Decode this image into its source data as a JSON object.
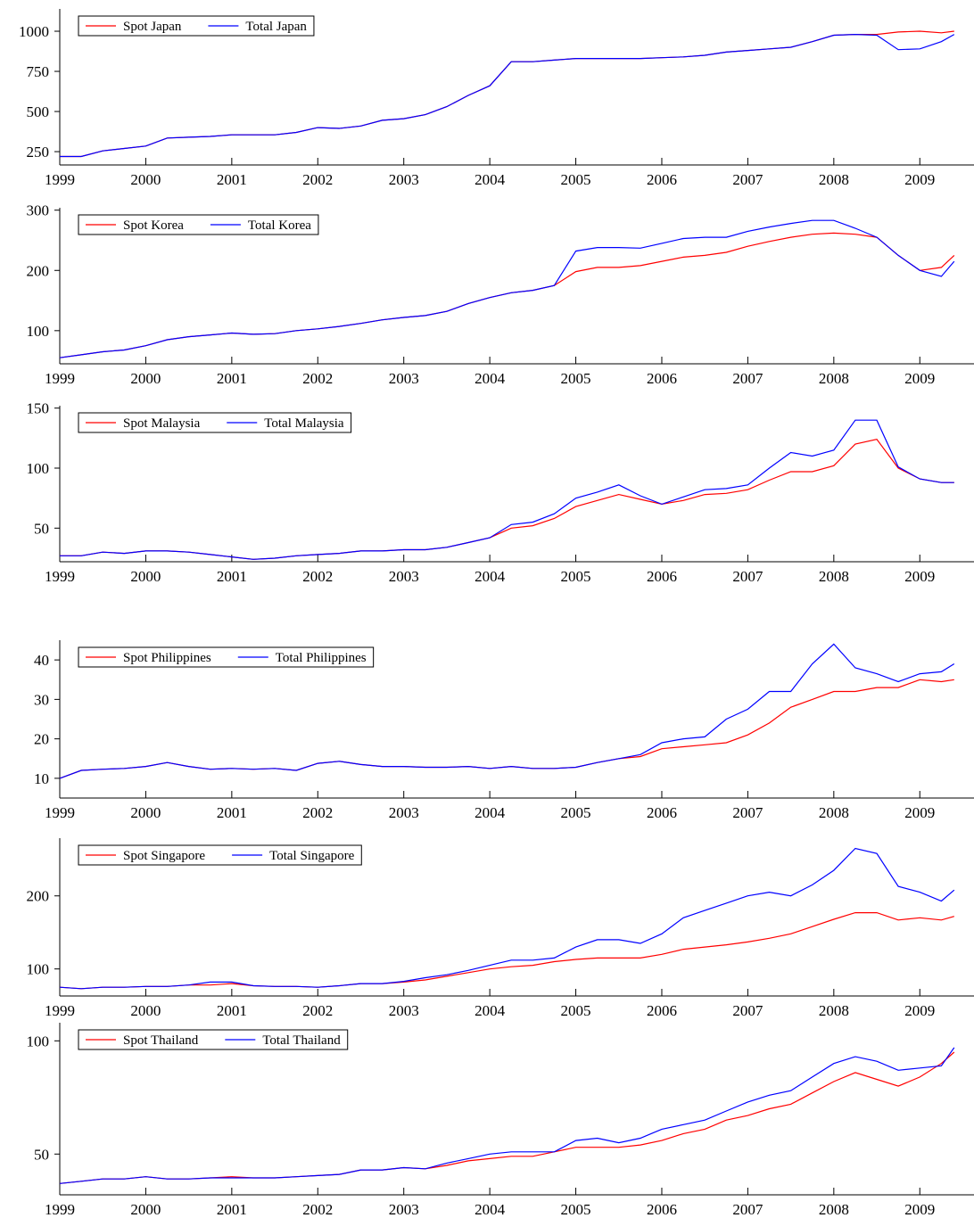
{
  "chart_data": [
    {
      "type": "line",
      "legend": "upper left",
      "xlim": [
        1999,
        2009.63
      ],
      "xticks": [
        1999,
        2000,
        2001,
        2002,
        2003,
        2004,
        2005,
        2006,
        2007,
        2008,
        2009
      ],
      "ylim": [
        167,
        1139
      ],
      "yticks": [
        250,
        500,
        750,
        1000
      ],
      "x": [
        1999,
        1999.25,
        1999.5,
        1999.75,
        2000,
        2000.25,
        2000.5,
        2000.75,
        2001,
        2001.25,
        2001.5,
        2001.75,
        2002,
        2002.25,
        2002.5,
        2002.75,
        2003,
        2003.25,
        2003.5,
        2003.75,
        2004,
        2004.25,
        2004.5,
        2004.75,
        2005,
        2005.25,
        2005.5,
        2005.75,
        2006,
        2006.25,
        2006.5,
        2006.75,
        2007,
        2007.25,
        2007.5,
        2007.75,
        2008,
        2008.25,
        2008.5,
        2008.75,
        2009,
        2009.25,
        2009.4
      ],
      "series": [
        {
          "name": "Spot Japan",
          "color": "#ff0000",
          "values": [
            220,
            220,
            255,
            270,
            285,
            335,
            340,
            345,
            355,
            355,
            355,
            370,
            400,
            395,
            410,
            445,
            455,
            480,
            530,
            600,
            660,
            810,
            810,
            820,
            830,
            830,
            830,
            830,
            835,
            840,
            850,
            870,
            880,
            890,
            900,
            935,
            975,
            980,
            980,
            995,
            1000,
            990,
            1000
          ]
        },
        {
          "name": "Total Japan",
          "color": "#0000ff",
          "values": [
            220,
            220,
            255,
            270,
            285,
            335,
            340,
            345,
            355,
            355,
            355,
            370,
            400,
            395,
            410,
            445,
            455,
            480,
            530,
            600,
            660,
            810,
            810,
            820,
            830,
            830,
            830,
            830,
            835,
            840,
            850,
            870,
            880,
            890,
            900,
            935,
            975,
            980,
            975,
            885,
            890,
            935,
            980
          ]
        }
      ]
    },
    {
      "type": "line",
      "legend": "upper left",
      "xlim": [
        1999,
        2009.63
      ],
      "xticks": [
        1999,
        2000,
        2001,
        2002,
        2003,
        2004,
        2005,
        2006,
        2007,
        2008,
        2009
      ],
      "ylim": [
        45,
        304
      ],
      "yticks": [
        100,
        200,
        300
      ],
      "x": [
        1999,
        1999.25,
        1999.5,
        1999.75,
        2000,
        2000.25,
        2000.5,
        2000.75,
        2001,
        2001.25,
        2001.5,
        2001.75,
        2002,
        2002.25,
        2002.5,
        2002.75,
        2003,
        2003.25,
        2003.5,
        2003.75,
        2004,
        2004.25,
        2004.5,
        2004.75,
        2005,
        2005.25,
        2005.5,
        2005.75,
        2006,
        2006.25,
        2006.5,
        2006.75,
        2007,
        2007.25,
        2007.5,
        2007.75,
        2008,
        2008.25,
        2008.5,
        2008.75,
        2009,
        2009.25,
        2009.4
      ],
      "series": [
        {
          "name": "Spot Korea",
          "color": "#ff0000",
          "values": [
            55,
            60,
            65,
            68,
            75,
            85,
            90,
            93,
            96,
            94,
            95,
            100,
            103,
            107,
            112,
            118,
            122,
            125,
            132,
            145,
            155,
            163,
            167,
            175,
            198,
            205,
            205,
            208,
            215,
            222,
            225,
            230,
            240,
            248,
            255,
            260,
            262,
            260,
            255,
            225,
            200,
            205,
            225
          ]
        },
        {
          "name": "Total Korea",
          "color": "#0000ff",
          "values": [
            55,
            60,
            65,
            68,
            75,
            85,
            90,
            93,
            96,
            94,
            95,
            100,
            103,
            107,
            112,
            118,
            122,
            125,
            132,
            145,
            155,
            163,
            167,
            175,
            232,
            238,
            238,
            237,
            245,
            253,
            255,
            255,
            265,
            272,
            278,
            283,
            283,
            270,
            255,
            225,
            200,
            190,
            215
          ]
        }
      ]
    },
    {
      "type": "line",
      "legend": "upper left",
      "xlim": [
        1999,
        2009.63
      ],
      "xticks": [
        1999,
        2000,
        2001,
        2002,
        2003,
        2004,
        2005,
        2006,
        2007,
        2008,
        2009
      ],
      "ylim": [
        22,
        152
      ],
      "yticks": [
        50,
        100,
        150
      ],
      "x": [
        1999,
        1999.25,
        1999.5,
        1999.75,
        2000,
        2000.25,
        2000.5,
        2000.75,
        2001,
        2001.25,
        2001.5,
        2001.75,
        2002,
        2002.25,
        2002.5,
        2002.75,
        2003,
        2003.25,
        2003.5,
        2003.75,
        2004,
        2004.25,
        2004.5,
        2004.75,
        2005,
        2005.25,
        2005.5,
        2005.75,
        2006,
        2006.25,
        2006.5,
        2006.75,
        2007,
        2007.25,
        2007.5,
        2007.75,
        2008,
        2008.25,
        2008.5,
        2008.75,
        2009,
        2009.25,
        2009.4
      ],
      "series": [
        {
          "name": "Spot Malaysia",
          "color": "#ff0000",
          "values": [
            27,
            27,
            30,
            29,
            31,
            31,
            30,
            28,
            26,
            24,
            25,
            27,
            28,
            29,
            31,
            31,
            32,
            32,
            34,
            38,
            42,
            50,
            52,
            58,
            68,
            73,
            78,
            74,
            70,
            73,
            78,
            79,
            82,
            90,
            97,
            97,
            102,
            120,
            124,
            100,
            91,
            88,
            88
          ]
        },
        {
          "name": "Total Malaysia",
          "color": "#0000ff",
          "values": [
            27,
            27,
            30,
            29,
            31,
            31,
            30,
            28,
            26,
            24,
            25,
            27,
            28,
            29,
            31,
            31,
            32,
            32,
            34,
            38,
            42,
            53,
            55,
            62,
            75,
            80,
            86,
            77,
            70,
            76,
            82,
            83,
            86,
            100,
            113,
            110,
            115,
            140,
            140,
            101,
            91,
            88,
            88
          ]
        }
      ]
    },
    {
      "type": "line",
      "legend": "upper left",
      "xlim": [
        1999,
        2009.63
      ],
      "xticks": [
        1999,
        2000,
        2001,
        2002,
        2003,
        2004,
        2005,
        2006,
        2007,
        2008,
        2009
      ],
      "ylim": [
        5,
        45
      ],
      "yticks": [
        10,
        20,
        30,
        40
      ],
      "x": [
        1999,
        1999.25,
        1999.5,
        1999.75,
        2000,
        2000.25,
        2000.5,
        2000.75,
        2001,
        2001.25,
        2001.5,
        2001.75,
        2002,
        2002.25,
        2002.5,
        2002.75,
        2003,
        2003.25,
        2003.5,
        2003.75,
        2004,
        2004.25,
        2004.5,
        2004.75,
        2005,
        2005.25,
        2005.5,
        2005.75,
        2006,
        2006.25,
        2006.5,
        2006.75,
        2007,
        2007.25,
        2007.5,
        2007.75,
        2008,
        2008.25,
        2008.5,
        2008.75,
        2009,
        2009.25,
        2009.4
      ],
      "series": [
        {
          "name": "Spot Philippines",
          "color": "#ff0000",
          "values": [
            10,
            12,
            12.3,
            12.5,
            13,
            14,
            13,
            12.3,
            12.5,
            12.3,
            12.5,
            12,
            13.8,
            14.3,
            13.5,
            13,
            13,
            12.8,
            12.8,
            13,
            12.5,
            13,
            12.5,
            12.5,
            12.8,
            14,
            15,
            15.5,
            17.5,
            18,
            18.5,
            19,
            21,
            24,
            28,
            30,
            32,
            32,
            33,
            33,
            35,
            34.5,
            35
          ]
        },
        {
          "name": "Total Philippines",
          "color": "#0000ff",
          "values": [
            10,
            12,
            12.3,
            12.5,
            13,
            14,
            13,
            12.3,
            12.5,
            12.3,
            12.5,
            12,
            13.8,
            14.3,
            13.5,
            13,
            13,
            12.8,
            12.8,
            13,
            12.5,
            13,
            12.5,
            12.5,
            12.8,
            14,
            15,
            16,
            19,
            20,
            20.5,
            25,
            27.5,
            32,
            32,
            39,
            44,
            38,
            36.5,
            34.5,
            36.5,
            37,
            39
          ]
        }
      ]
    },
    {
      "type": "line",
      "legend": "upper left",
      "xlim": [
        1999,
        2009.63
      ],
      "xticks": [
        1999,
        2000,
        2001,
        2002,
        2003,
        2004,
        2005,
        2006,
        2007,
        2008,
        2009
      ],
      "ylim": [
        63,
        279
      ],
      "yticks": [
        100,
        200
      ],
      "x": [
        1999,
        1999.25,
        1999.5,
        1999.75,
        2000,
        2000.25,
        2000.5,
        2000.75,
        2001,
        2001.25,
        2001.5,
        2001.75,
        2002,
        2002.25,
        2002.5,
        2002.75,
        2003,
        2003.25,
        2003.5,
        2003.75,
        2004,
        2004.25,
        2004.5,
        2004.75,
        2005,
        2005.25,
        2005.5,
        2005.75,
        2006,
        2006.25,
        2006.5,
        2006.75,
        2007,
        2007.25,
        2007.5,
        2007.75,
        2008,
        2008.25,
        2008.5,
        2008.75,
        2009,
        2009.25,
        2009.4
      ],
      "series": [
        {
          "name": "Spot Singapore",
          "color": "#ff0000",
          "values": [
            75,
            73,
            75,
            75,
            76,
            76,
            78,
            78,
            80,
            77,
            76,
            76,
            75,
            77,
            80,
            80,
            82,
            85,
            90,
            95,
            100,
            103,
            105,
            110,
            113,
            115,
            115,
            115,
            120,
            127,
            130,
            133,
            137,
            142,
            148,
            158,
            168,
            177,
            177,
            167,
            170,
            167,
            172
          ]
        },
        {
          "name": "Total Singapore",
          "color": "#0000ff",
          "values": [
            75,
            73,
            75,
            75,
            76,
            76,
            78,
            82,
            82,
            77,
            76,
            76,
            75,
            77,
            80,
            80,
            83,
            88,
            92,
            98,
            105,
            112,
            112,
            115,
            130,
            140,
            140,
            135,
            148,
            170,
            180,
            190,
            200,
            205,
            200,
            215,
            235,
            265,
            258,
            213,
            205,
            193,
            208
          ]
        }
      ]
    },
    {
      "type": "line",
      "legend": "upper left",
      "xlim": [
        1999,
        2009.63
      ],
      "xticks": [
        1999,
        2000,
        2001,
        2002,
        2003,
        2004,
        2005,
        2006,
        2007,
        2008,
        2009
      ],
      "ylim": [
        32,
        108
      ],
      "yticks": [
        50,
        100
      ],
      "x": [
        1999,
        1999.25,
        1999.5,
        1999.75,
        2000,
        2000.25,
        2000.5,
        2000.75,
        2001,
        2001.25,
        2001.5,
        2001.75,
        2002,
        2002.25,
        2002.5,
        2002.75,
        2003,
        2003.25,
        2003.5,
        2003.75,
        2004,
        2004.25,
        2004.5,
        2004.75,
        2005,
        2005.25,
        2005.5,
        2005.75,
        2006,
        2006.25,
        2006.5,
        2006.75,
        2007,
        2007.25,
        2007.5,
        2007.75,
        2008,
        2008.25,
        2008.5,
        2008.75,
        2009,
        2009.25,
        2009.4
      ],
      "series": [
        {
          "name": "Spot Thailand",
          "color": "#ff0000",
          "values": [
            37,
            38,
            39,
            39,
            40,
            39,
            39,
            39.5,
            40,
            39.5,
            39.5,
            40,
            40.5,
            41,
            43,
            43,
            44,
            43.5,
            45,
            47,
            48,
            49,
            49,
            51,
            53,
            53,
            53,
            54,
            56,
            59,
            61,
            65,
            67,
            70,
            72,
            77,
            82,
            86,
            83,
            80,
            84,
            90,
            95
          ]
        },
        {
          "name": "Total Thailand",
          "color": "#0000ff",
          "values": [
            37,
            38,
            39,
            39,
            40,
            39,
            39,
            39.5,
            39.5,
            39.5,
            39.5,
            40,
            40.5,
            41,
            43,
            43,
            44,
            43.5,
            46,
            48,
            50,
            51,
            51,
            51,
            56,
            57,
            55,
            57,
            61,
            63,
            65,
            69,
            73,
            76,
            78,
            84,
            90,
            93,
            91,
            87,
            88,
            89,
            97
          ]
        }
      ]
    }
  ]
}
